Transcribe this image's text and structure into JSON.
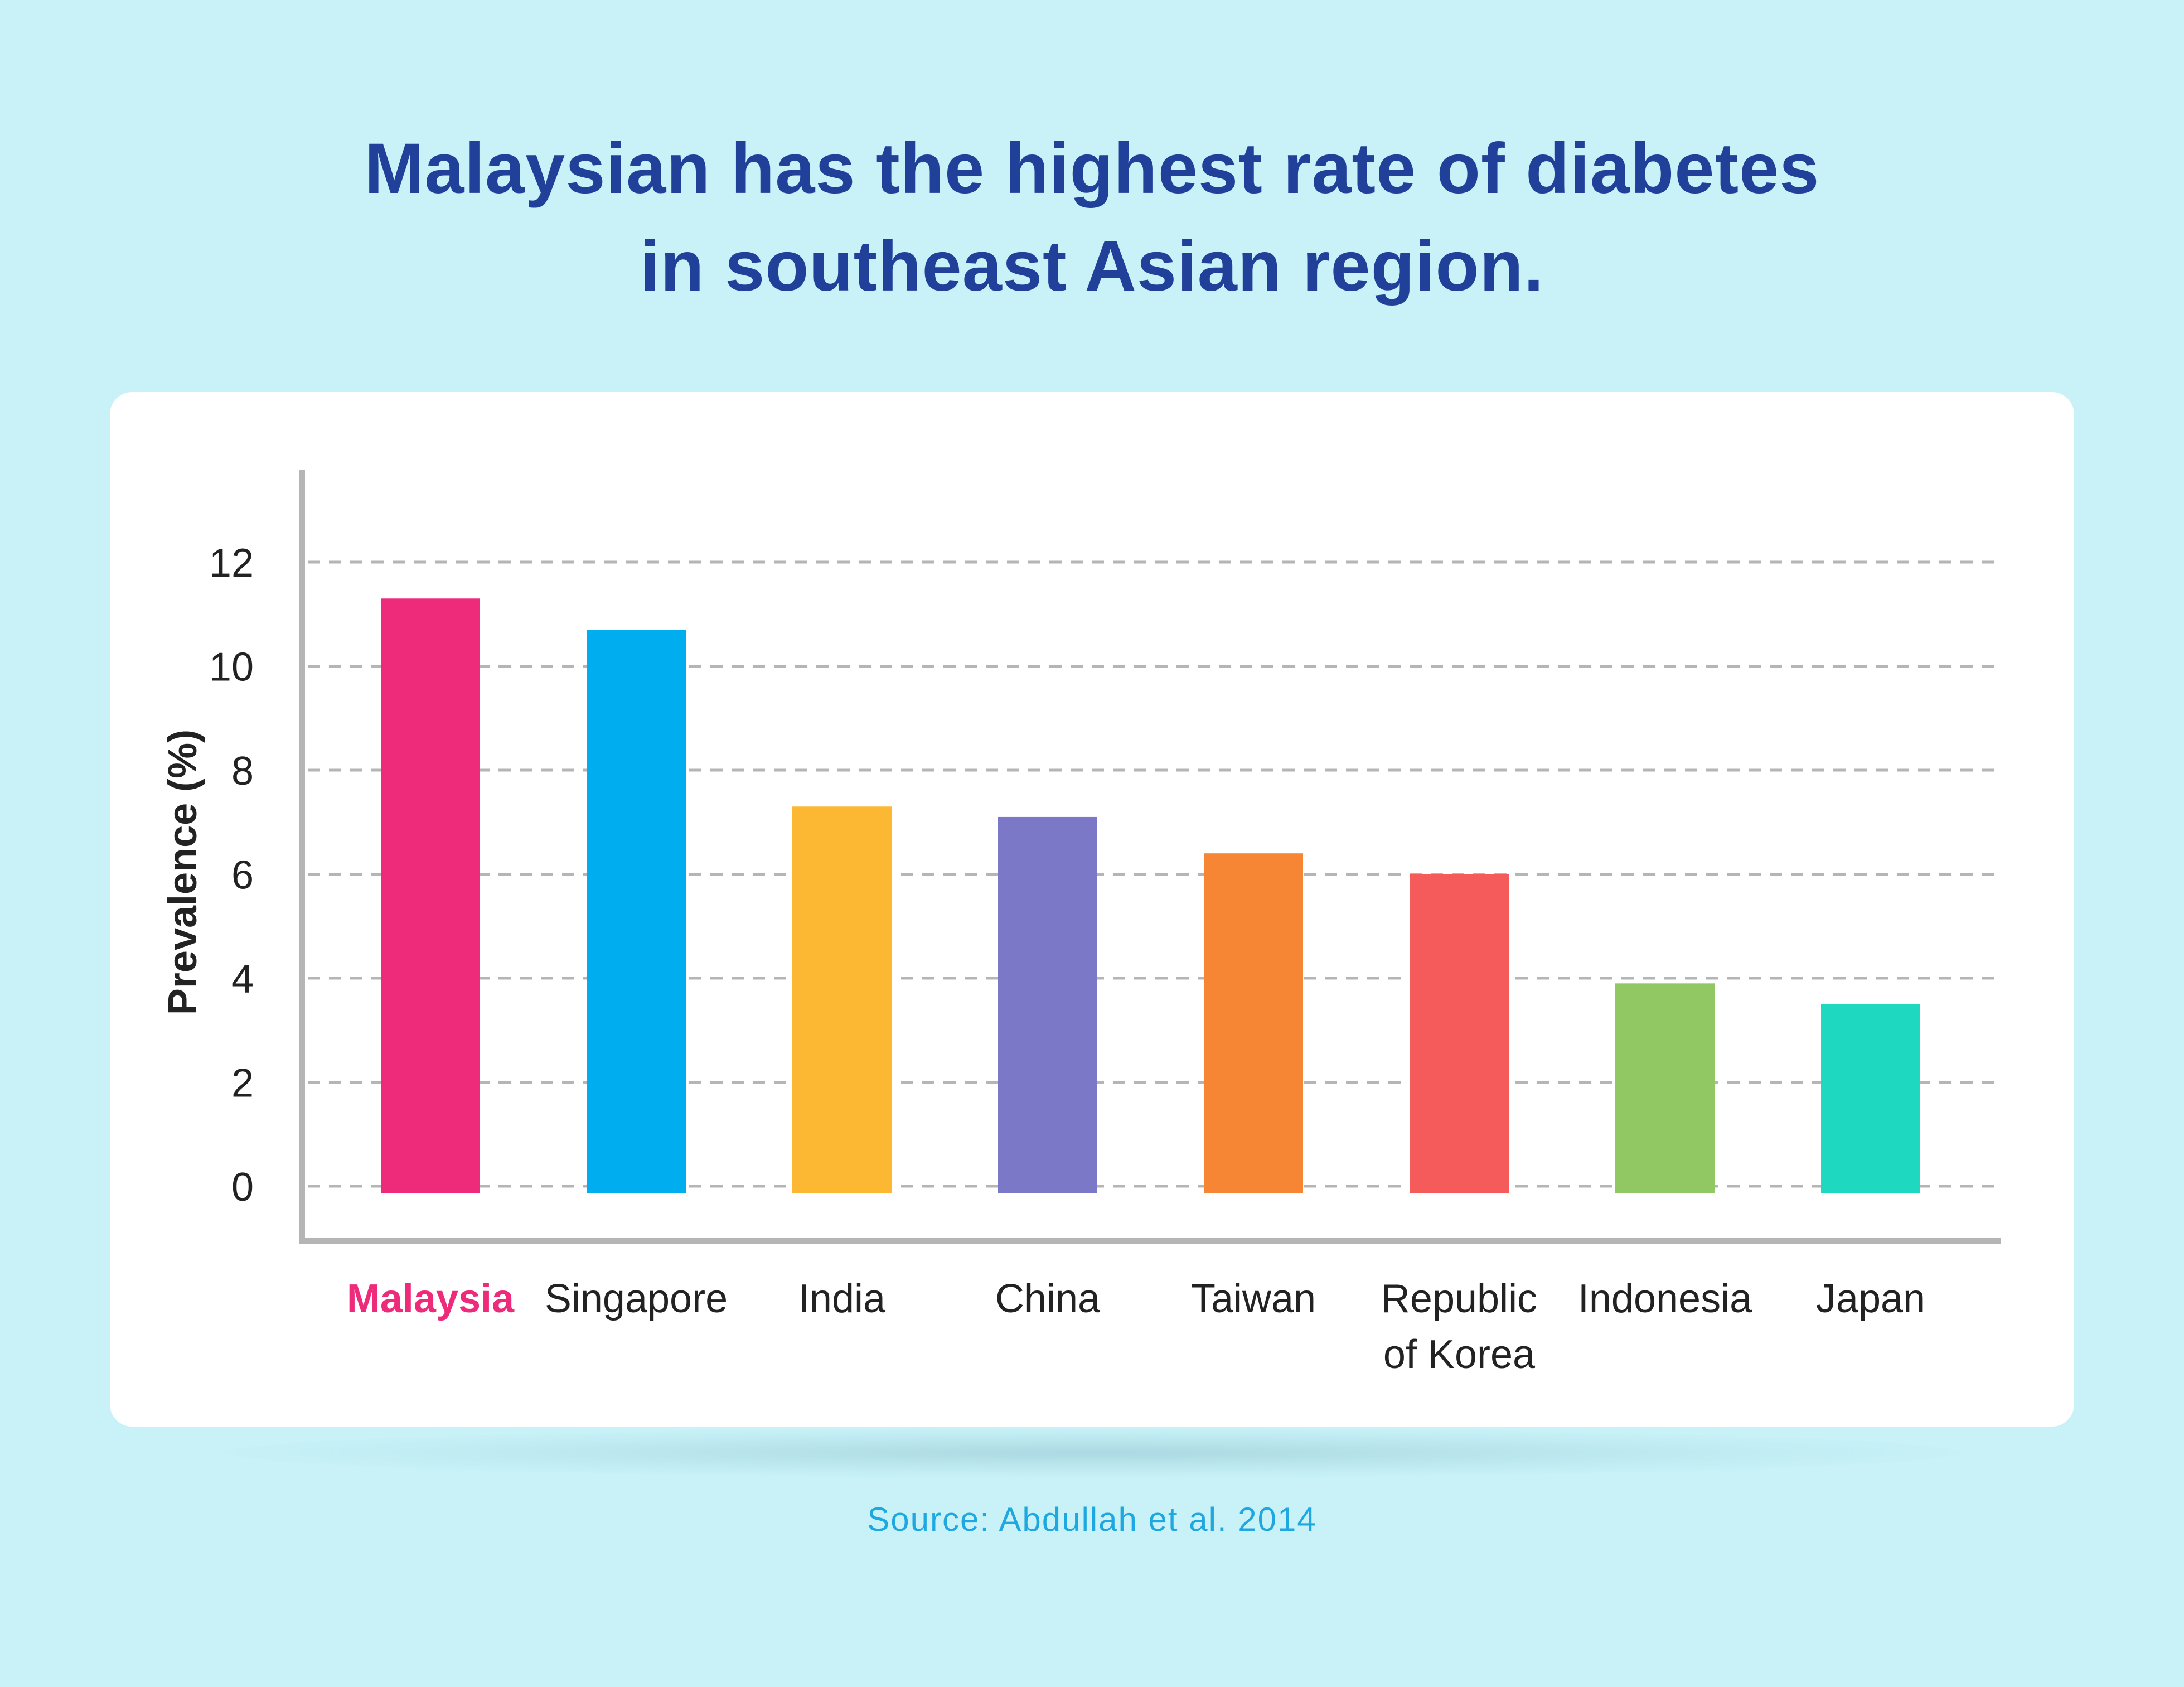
{
  "title_lines": [
    "Malaysian has the highest rate of diabetes",
    "in southeast Asian region."
  ],
  "source": "Source: Abdullah et al. 2014",
  "chart_data": {
    "type": "bar",
    "title": "Malaysian has the highest rate of diabetes in southeast Asian region.",
    "xlabel": "",
    "ylabel": "Prevalence (%)",
    "ylim": [
      0,
      12
    ],
    "yticks": [
      0,
      2,
      4,
      6,
      8,
      10,
      12
    ],
    "grid": "horizontal dashed",
    "categories": [
      "Malaysia",
      "Singapore",
      "India",
      "China",
      "Taiwan",
      "Republic of Korea",
      "Indonesia",
      "Japan"
    ],
    "category_label_lines": [
      [
        "Malaysia"
      ],
      [
        "Singapore"
      ],
      [
        "India"
      ],
      [
        "China"
      ],
      [
        "Taiwan"
      ],
      [
        "Republic",
        "of Korea"
      ],
      [
        "Indonesia"
      ],
      [
        "Japan"
      ]
    ],
    "values": [
      11.3,
      10.7,
      7.3,
      7.1,
      6.4,
      6.0,
      3.9,
      3.5
    ],
    "colors": [
      "#ee2b7b",
      "#00aeef",
      "#fdb833",
      "#7b78c8",
      "#f68634",
      "#f55b5b",
      "#92c863",
      "#1fd8c0"
    ],
    "highlight_category": "Malaysia",
    "highlight_color": "#ee2b7b"
  }
}
